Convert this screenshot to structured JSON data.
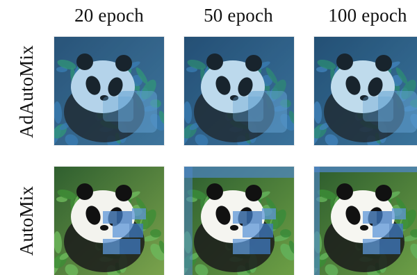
{
  "columns": [
    {
      "label": "20 epoch"
    },
    {
      "label": "50 epoch"
    },
    {
      "label": "100 epoch"
    }
  ],
  "rows": [
    {
      "label": "AdAutoMix",
      "tiles": [
        {
          "subject": "panda",
          "style": "blue-tint"
        },
        {
          "subject": "panda",
          "style": "blue-tint"
        },
        {
          "subject": "panda",
          "style": "blue-tint"
        }
      ]
    },
    {
      "label": "AutoMix",
      "tiles": [
        {
          "subject": "panda",
          "style": "natural-with-mixed-patches"
        },
        {
          "subject": "panda",
          "style": "natural-with-mixed-patches"
        },
        {
          "subject": "panda",
          "style": "natural-with-mixed-patches"
        }
      ]
    }
  ]
}
